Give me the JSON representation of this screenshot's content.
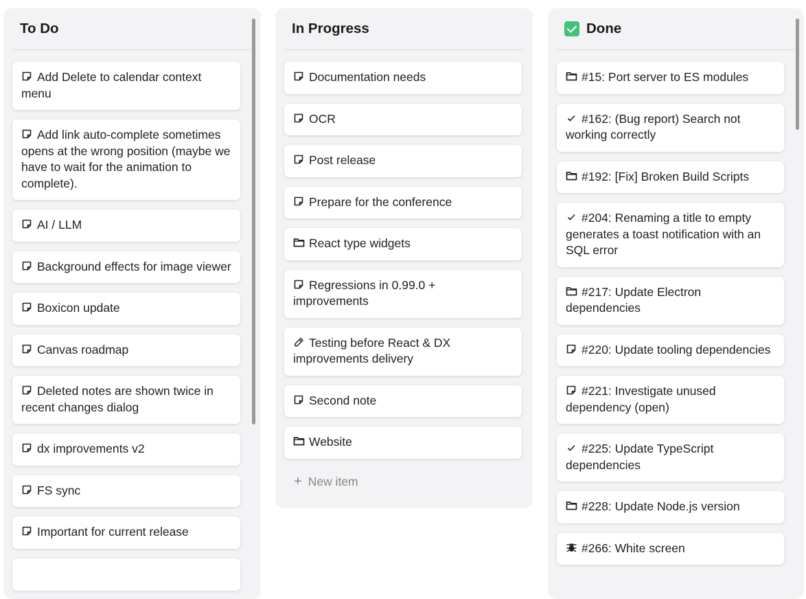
{
  "columns": [
    {
      "title": "To Do",
      "items": [
        {
          "icon": "note",
          "label": "Add Delete to calendar context menu"
        },
        {
          "icon": "note",
          "label": "Add link auto-complete sometimes opens at the wrong position (maybe we have to wait for the animation to complete)."
        },
        {
          "icon": "note",
          "label": "AI / LLM"
        },
        {
          "icon": "note",
          "label": "Background effects for image viewer"
        },
        {
          "icon": "note",
          "label": "Boxicon update"
        },
        {
          "icon": "note",
          "label": "Canvas roadmap"
        },
        {
          "icon": "note",
          "label": "Deleted notes are shown twice in recent changes dialog"
        },
        {
          "icon": "note",
          "label": "dx improvements v2"
        },
        {
          "icon": "note",
          "label": "FS sync"
        },
        {
          "icon": "note",
          "label": "Important for current release"
        },
        {
          "icon": "note",
          "label": ""
        }
      ]
    },
    {
      "title": "In Progress",
      "items": [
        {
          "icon": "note",
          "label": "Documentation needs"
        },
        {
          "icon": "note",
          "label": "OCR"
        },
        {
          "icon": "note",
          "label": "Post release"
        },
        {
          "icon": "note",
          "label": "Prepare for the conference"
        },
        {
          "icon": "folder",
          "label": "React type widgets"
        },
        {
          "icon": "note",
          "label": "Regressions in 0.99.0 + improvements"
        },
        {
          "icon": "pencil",
          "label": "Testing before React & DX improvements delivery"
        },
        {
          "icon": "note",
          "label": "Second note"
        },
        {
          "icon": "folder",
          "label": "Website"
        }
      ],
      "new_item_label": "New item"
    },
    {
      "title": "Done",
      "title_icon": "check-box",
      "items": [
        {
          "icon": "folder",
          "label": "#15: Port server to ES modules"
        },
        {
          "icon": "check",
          "label": "#162: (Bug report) Search not working correctly"
        },
        {
          "icon": "folder",
          "label": "#192: [Fix] Broken Build Scripts"
        },
        {
          "icon": "check",
          "label": "#204: Renaming a title to empty generates a toast notification with an SQL error"
        },
        {
          "icon": "folder",
          "label": "#217: Update Electron dependencies"
        },
        {
          "icon": "note",
          "label": "#220: Update tooling dependencies"
        },
        {
          "icon": "note",
          "label": "#221: Investigate unused dependency (open)"
        },
        {
          "icon": "check",
          "label": "#225: Update TypeScript dependencies"
        },
        {
          "icon": "folder",
          "label": "#228: Update Node.js version"
        },
        {
          "icon": "bug",
          "label": "#266: White screen"
        }
      ]
    }
  ],
  "colors": {
    "done_check": "#43c07c",
    "column_bg": "#f3f3f5"
  }
}
